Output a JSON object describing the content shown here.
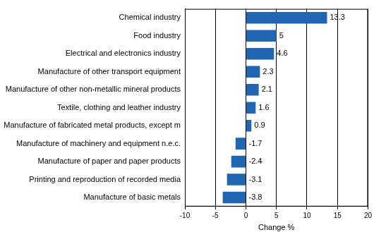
{
  "chart_data": {
    "type": "bar",
    "orientation": "horizontal",
    "categories": [
      "Chemical industry",
      "Food industry",
      "Electrical and electronics industry",
      "Manufacture of other transport equipment",
      "Manufacture of other non-metallic mineral products",
      "Textile, clothing and leather industry",
      "Manufacture of fabricated metal products, except m",
      "Manufacture of machinery and equipment n.e.c.",
      "Manufacture of paper and paper products",
      "Printing and reproduction of recorded media",
      "Manufacture of basic metals"
    ],
    "values": [
      13.3,
      5,
      4.6,
      2.3,
      2.1,
      1.6,
      0.9,
      -1.7,
      -2.4,
      -3.1,
      -3.8
    ],
    "color": "#2166b0",
    "x_label": "Change %",
    "xlim": [
      -10,
      20
    ],
    "xticks": [
      -10,
      -5,
      0,
      5,
      10,
      15,
      20
    ],
    "grid": true,
    "data_labels": true
  }
}
